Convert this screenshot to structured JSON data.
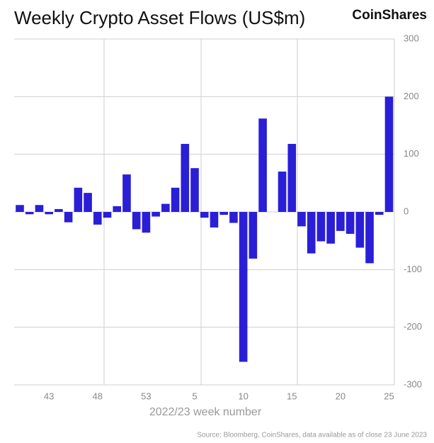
{
  "chart_data": {
    "type": "bar",
    "title": "Weekly Crypto Asset Flows (US$m)",
    "logo": "CoinShares",
    "x_label": "2022/23 week number",
    "source": "Source: Bloomberg, CoinShares, data available as of close 23 June 2023",
    "categories": [
      null,
      null,
      null,
      "43",
      null,
      null,
      null,
      null,
      "48",
      null,
      null,
      null,
      null,
      "53",
      null,
      null,
      null,
      null,
      "5",
      null,
      null,
      null,
      null,
      "10",
      null,
      null,
      null,
      null,
      "15",
      null,
      null,
      null,
      null,
      "20",
      null,
      null,
      null,
      null,
      "25"
    ],
    "values": [
      12,
      -4,
      12,
      -4,
      5,
      -18,
      42,
      33,
      -22,
      -10,
      10,
      65,
      -30,
      -36,
      -8,
      14,
      42,
      118,
      76,
      -10,
      -27,
      -5,
      -19,
      -260,
      -81,
      162,
      0,
      70,
      118,
      -25,
      -72,
      -51,
      -55,
      -33,
      -38,
      -62,
      -89,
      -5,
      200
    ],
    "color": "#2a1fd6",
    "ylim": [
      -300,
      300
    ],
    "yticks": [
      -300,
      -200,
      -100,
      0,
      100,
      200,
      300
    ],
    "grid": true
  }
}
